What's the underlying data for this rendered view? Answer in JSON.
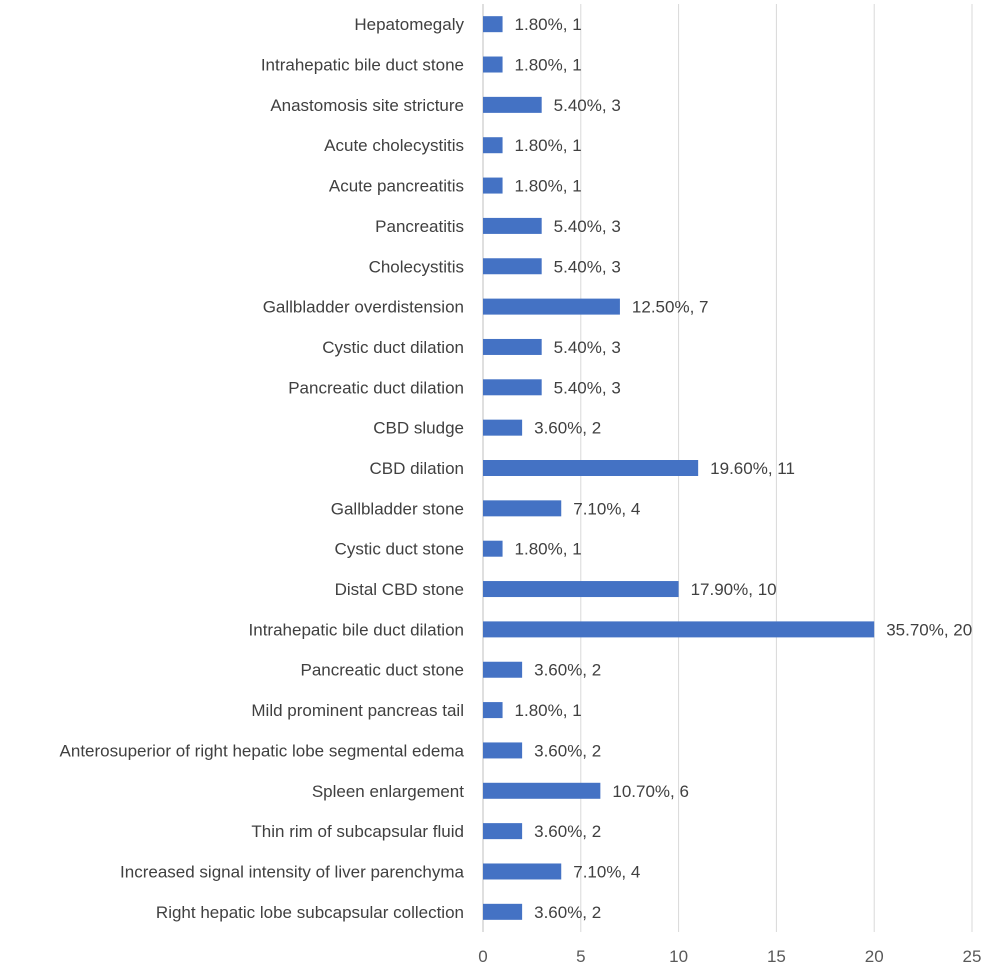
{
  "chart_data": {
    "type": "bar",
    "orientation": "horizontal",
    "categories": [
      "Hepatomegaly",
      "Intrahepatic bile duct stone",
      "Anastomosis site stricture",
      "Acute cholecystitis",
      "Acute pancreatitis",
      "Pancreatitis",
      "Cholecystitis",
      "Gallbladder overdistension",
      "Cystic duct dilation",
      "Pancreatic duct dilation",
      "CBD sludge",
      "CBD dilation",
      "Gallbladder stone",
      "Cystic duct stone",
      "Distal CBD stone",
      "Intrahepatic bile duct dilation",
      "Pancreatic duct stone",
      "Mild prominent pancreas tail",
      "Anterosuperior of right hepatic lobe segmental edema",
      "Spleen enlargement",
      "Thin rim of subcapsular fluid",
      "Increased signal intensity of liver parenchyma",
      "Right hepatic lobe subcapsular collection"
    ],
    "values": [
      1,
      1,
      3,
      1,
      1,
      3,
      3,
      7,
      3,
      3,
      2,
      11,
      4,
      1,
      10,
      20,
      2,
      1,
      2,
      6,
      2,
      4,
      2
    ],
    "data_labels": [
      "1.80%, 1",
      "1.80%, 1",
      "5.40%, 3",
      "1.80%, 1",
      "1.80%, 1",
      "5.40%, 3",
      "5.40%, 3",
      "12.50%, 7",
      "5.40%, 3",
      "5.40%, 3",
      "3.60%, 2",
      "19.60%, 11",
      "7.10%, 4",
      "1.80%, 1",
      "17.90%, 10",
      "35.70%, 20",
      "3.60%, 2",
      "1.80%, 1",
      "3.60%, 2",
      "10.70%, 6",
      "3.60%, 2",
      "7.10%, 4",
      "3.60%, 2"
    ],
    "x_ticks": [
      "0",
      "5",
      "10",
      "15",
      "20",
      "25"
    ],
    "xlim": [
      0,
      25
    ],
    "grid": "vertical",
    "legend": "none",
    "bar_color": "#4472C4",
    "grid_color": "#d9d9d9",
    "text_color": "#404040"
  }
}
